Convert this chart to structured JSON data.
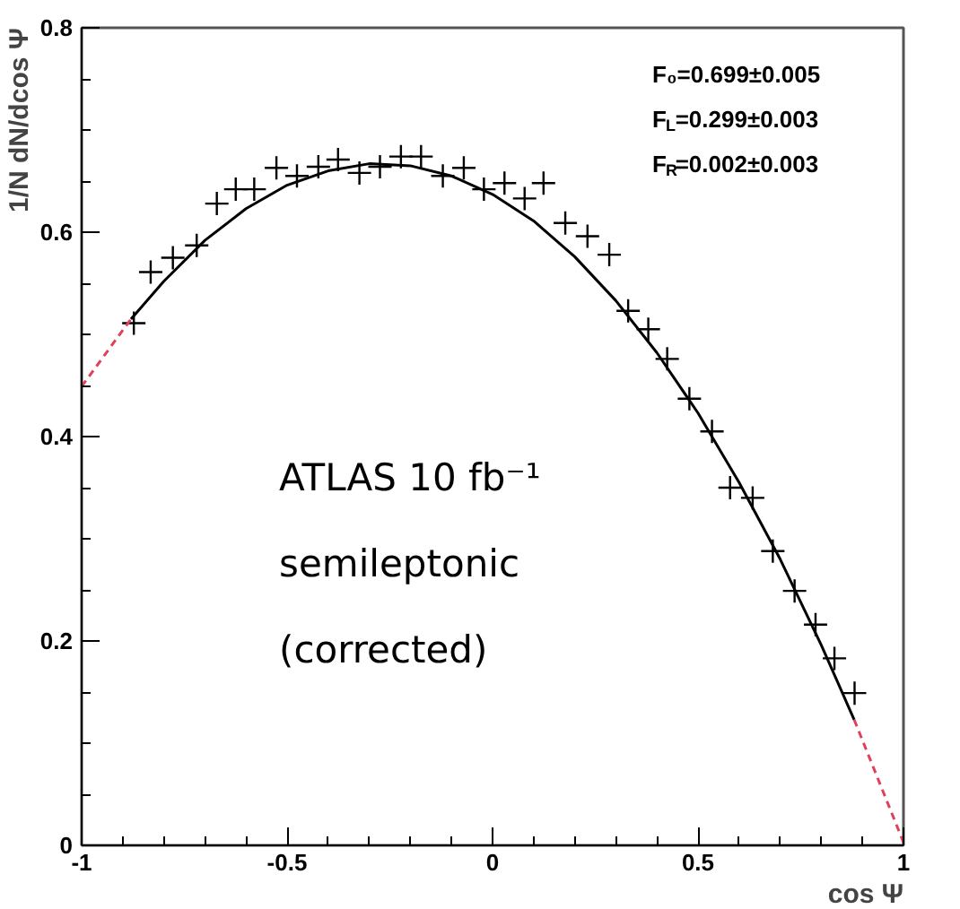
{
  "chart_data": {
    "type": "scatter",
    "xlabel": "cos Ψ",
    "ylabel": "1/N dN/dcos Ψ",
    "xlim": [
      -1,
      1
    ],
    "ylim": [
      0,
      0.8
    ],
    "xticks": [
      -1,
      -0.5,
      0,
      0.5,
      1
    ],
    "yticks": [
      0,
      0.2,
      0.4,
      0.6,
      0.8
    ],
    "grid": false,
    "annotations": [
      "F₀=0.699±0.005",
      "F$_{L}$=0.299±0.003",
      "F$_{R}$=0.002±0.003",
      "ATLAS 10 fb⁻¹",
      "semileptonic",
      "(corrected)"
    ],
    "series": [
      {
        "color": "#000000",
        "marker": "cross",
        "x": [
          -0.873,
          -0.832,
          -0.778,
          -0.72,
          -0.671,
          -0.625,
          -0.58,
          -0.526,
          -0.476,
          -0.424,
          -0.376,
          -0.324,
          -0.274,
          -0.223,
          -0.174,
          -0.121,
          -0.07,
          -0.021,
          0.029,
          0.078,
          0.124,
          0.177,
          0.231,
          0.284,
          0.33,
          0.379,
          0.425,
          0.479,
          0.534,
          0.578,
          0.633,
          0.682,
          0.735,
          0.786,
          0.832,
          0.881
        ],
        "values": [
          0.511,
          0.561,
          0.575,
          0.587,
          0.628,
          0.642,
          0.642,
          0.663,
          0.655,
          0.664,
          0.671,
          0.658,
          0.664,
          0.674,
          0.674,
          0.655,
          0.663,
          0.642,
          0.648,
          0.633,
          0.648,
          0.609,
          0.596,
          0.578,
          0.523,
          0.505,
          0.476,
          0.437,
          0.405,
          0.35,
          0.34,
          0.288,
          0.249,
          0.216,
          0.183,
          0.149
        ]
      },
      {
        "type": "line",
        "color": "#000000",
        "line_style": "solid",
        "x": [
          -0.88,
          -0.8,
          -0.7,
          -0.6,
          -0.5,
          -0.4,
          -0.3,
          -0.2,
          -0.1,
          0,
          0.1,
          0.2,
          0.3,
          0.4,
          0.5,
          0.6,
          0.7,
          0.8,
          0.88
        ],
        "values": [
          0.515,
          0.552,
          0.592,
          0.623,
          0.646,
          0.66,
          0.667,
          0.665,
          0.655,
          0.637,
          0.611,
          0.576,
          0.533,
          0.482,
          0.423,
          0.355,
          0.28,
          0.196,
          0.123
        ]
      },
      {
        "type": "line",
        "color": "#e0405a",
        "line_style": "dashed",
        "x": [
          -1,
          -0.9,
          -0.88
        ],
        "values": [
          0.449,
          0.504,
          0.515
        ]
      },
      {
        "type": "line",
        "color": "#e0405a",
        "line_style": "dashed",
        "x": [
          0.88,
          0.9,
          1
        ],
        "values": [
          0.123,
          0.103,
          0.003
        ]
      }
    ]
  }
}
